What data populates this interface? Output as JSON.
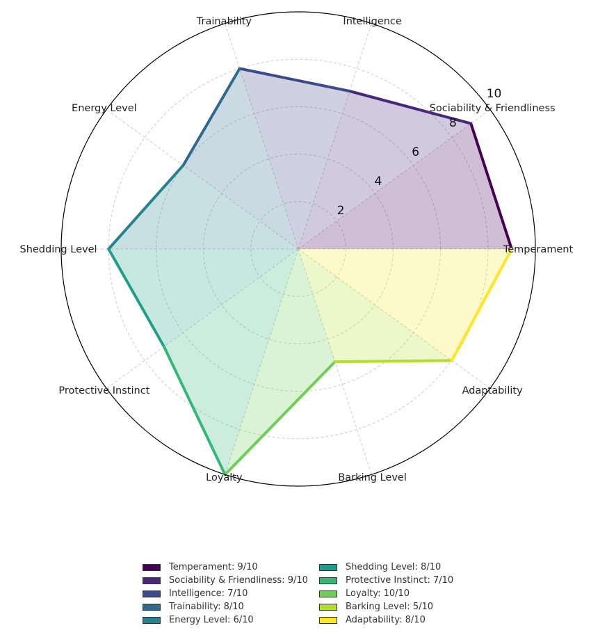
{
  "chart_data": {
    "type": "radar",
    "categories": [
      "Temperament",
      "Sociability & Friendliness",
      "Intelligence",
      "Trainability",
      "Energy Level",
      "Shedding Level",
      "Protective Instinct",
      "Loyalty",
      "Barking Level",
      "Adaptability"
    ],
    "values": [
      9,
      9,
      7,
      8,
      6,
      8,
      7,
      10,
      5,
      8
    ],
    "rlim": [
      0,
      10
    ],
    "rticks": [
      "2",
      "4",
      "6",
      "8",
      "10"
    ],
    "colors": [
      "#440154",
      "#482878",
      "#3e4989",
      "#31688e",
      "#26828e",
      "#1f9e89",
      "#35b779",
      "#6ece58",
      "#b5de2b",
      "#fde725"
    ],
    "legend": [
      "Temperament: 9/10",
      "Sociability & Friendliness: 9/10",
      "Intelligence: 7/10",
      "Trainability: 8/10",
      "Energy Level: 6/10",
      "Shedding Level: 8/10",
      "Protective Instinct: 7/10",
      "Loyalty: 10/10",
      "Barking Level: 5/10",
      "Adaptability: 8/10"
    ],
    "legend_placement": "bottom",
    "grid": true
  }
}
